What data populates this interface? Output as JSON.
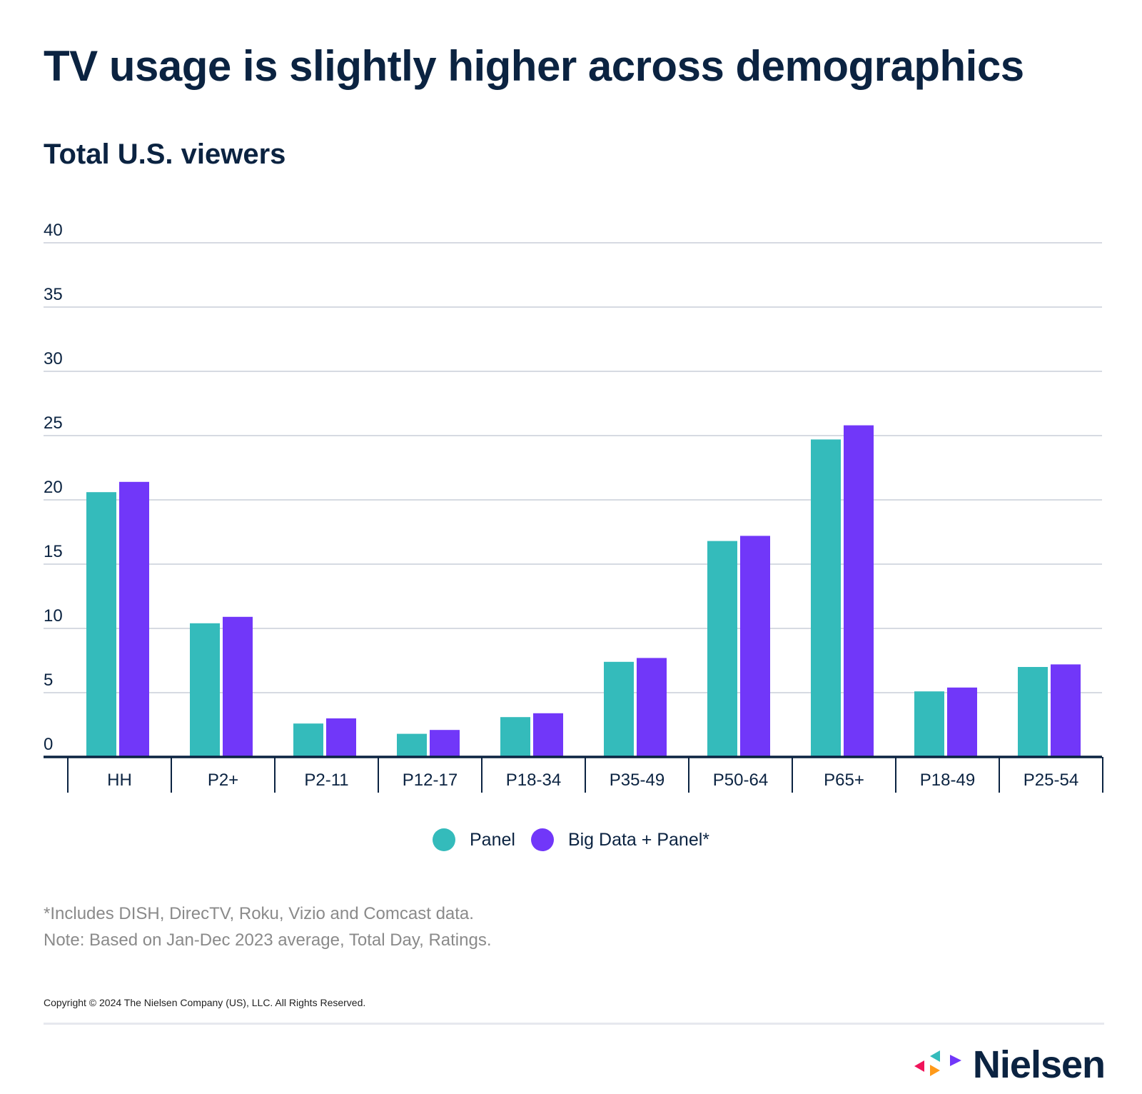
{
  "title": "TV usage is slightly higher across demographics",
  "subtitle": "Total U.S. viewers",
  "chart_data": {
    "type": "bar",
    "title": "TV usage is slightly higher across demographics",
    "subtitle": "Total U.S. viewers",
    "xlabel": "",
    "ylabel": "",
    "ylim": [
      0,
      40
    ],
    "yticks": [
      0,
      5,
      10,
      15,
      20,
      25,
      30,
      35,
      40
    ],
    "grid": true,
    "legend_position": "bottom",
    "categories": [
      "HH",
      "P2+",
      "P2-11",
      "P12-17",
      "P18-34",
      "P35-49",
      "P50-64",
      "P65+",
      "P18-49",
      "P25-54"
    ],
    "series": [
      {
        "name": "Panel",
        "color": "#34bbbb",
        "values": [
          20.6,
          10.4,
          2.6,
          1.8,
          3.1,
          7.4,
          16.8,
          24.7,
          5.1,
          7.0
        ]
      },
      {
        "name": "Big Data + Panel*",
        "color": "#7137f9",
        "values": [
          21.4,
          10.9,
          3.0,
          2.1,
          3.4,
          7.7,
          17.2,
          25.8,
          5.4,
          7.2
        ]
      }
    ]
  },
  "footnotes": [
    "*Includes DISH, DirecTV, Roku, Vizio and Comcast data.",
    "Note: Based on Jan-Dec 2023 average, Total Day, Ratings."
  ],
  "copyright": "Copyright © 2024 The Nielsen Company (US), LLC. All Rights Reserved.",
  "logo": {
    "text": "Nielsen",
    "colors": [
      "#f0145a",
      "#34bbbb",
      "#ff9a1a",
      "#7137f9"
    ]
  },
  "colors": {
    "text": "#0b2341",
    "grid": "#c9cdd8",
    "axis": "#0b2341"
  }
}
